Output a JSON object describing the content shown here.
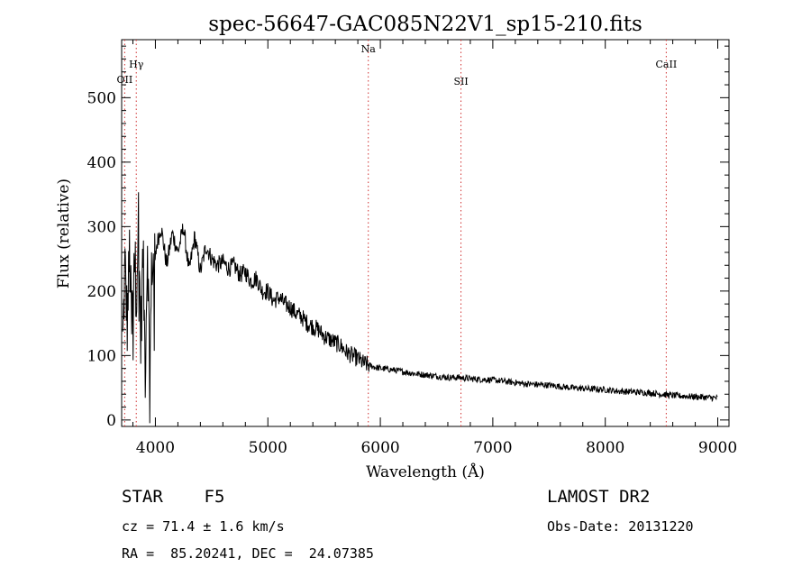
{
  "chart_data": {
    "type": "line",
    "title": "spec-56647-GAC085N22V1_sp15-210.fits",
    "xlabel": "Wavelength (Å)",
    "ylabel": "Flux (relative)",
    "xlim": [
      3700,
      9100
    ],
    "ylim": [
      -10,
      590
    ],
    "xticks": [
      4000,
      5000,
      6000,
      7000,
      8000,
      9000
    ],
    "yticks": [
      0,
      100,
      200,
      300,
      400,
      500
    ],
    "grid": false,
    "line_colors": {
      "spectrum": "#000000",
      "markers": "#d03030"
    },
    "lines": [
      {
        "name": "OII",
        "x": 3727
      },
      {
        "name": "Hγ",
        "x": 3830
      },
      {
        "name": "Na",
        "x": 5893
      },
      {
        "name": "SII",
        "x": 6717
      },
      {
        "name": "CaII",
        "x": 8542
      }
    ],
    "spectrum": {
      "x": [
        3710,
        3730,
        3750,
        3770,
        3790,
        3810,
        3830,
        3850,
        3870,
        3890,
        3910,
        3930,
        3950,
        3970,
        3990,
        4010,
        4050,
        4100,
        4150,
        4200,
        4250,
        4300,
        4350,
        4400,
        4450,
        4500,
        4550,
        4600,
        4650,
        4700,
        4750,
        4800,
        4850,
        4900,
        4950,
        5000,
        5050,
        5100,
        5150,
        5200,
        5250,
        5300,
        5350,
        5400,
        5450,
        5500,
        5550,
        5600,
        5650,
        5700,
        5750,
        5800,
        5850,
        5900,
        5950,
        6000,
        6100,
        6200,
        6300,
        6400,
        6500,
        6600,
        6700,
        6800,
        6900,
        7000,
        7100,
        7200,
        7300,
        7400,
        7500,
        7600,
        7700,
        7800,
        7900,
        8000,
        8100,
        8200,
        8300,
        8400,
        8500,
        8600,
        8700,
        8800,
        8900,
        9000
      ],
      "y": [
        120,
        240,
        150,
        260,
        140,
        270,
        200,
        315,
        120,
        260,
        80,
        280,
        70,
        250,
        230,
        270,
        300,
        240,
        290,
        260,
        300,
        230,
        285,
        230,
        270,
        250,
        240,
        245,
        235,
        240,
        225,
        230,
        215,
        220,
        200,
        200,
        185,
        190,
        180,
        175,
        165,
        160,
        150,
        145,
        140,
        130,
        125,
        120,
        115,
        105,
        100,
        95,
        88,
        85,
        82,
        80,
        78,
        75,
        72,
        70,
        68,
        66,
        66,
        64,
        63,
        62,
        60,
        58,
        56,
        55,
        54,
        52,
        50,
        49,
        48,
        47,
        45,
        44,
        43,
        42,
        40,
        38,
        37,
        36,
        35,
        34
      ]
    }
  },
  "info": {
    "class_line": "STAR    F5",
    "survey": "LAMOST DR2",
    "redshift": "cz = 71.4 ± 1.6 km/s",
    "obs_date": "Obs-Date: 20131220",
    "coords": "RA =  85.20241, DEC =  24.07385"
  }
}
